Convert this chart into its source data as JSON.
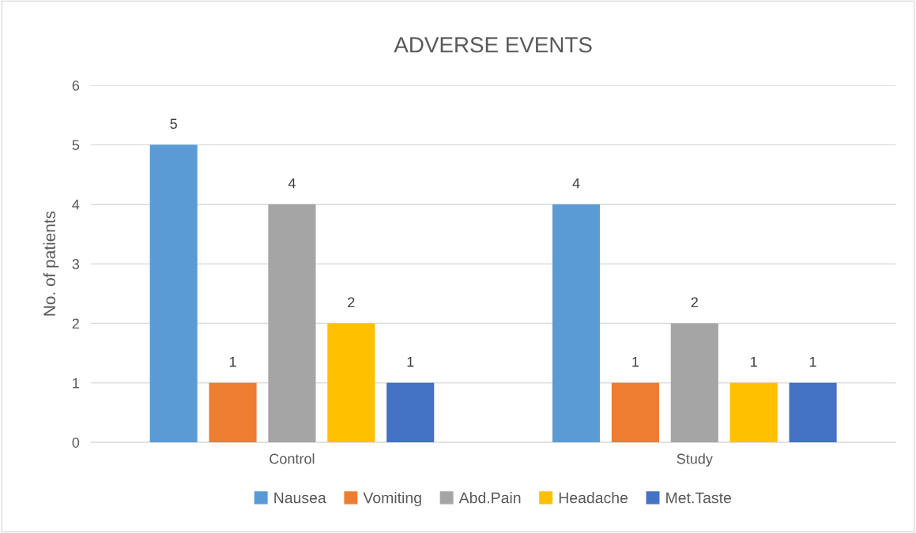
{
  "chart_data": {
    "type": "bar",
    "title": "ADVERSE EVENTS",
    "ylabel": "No. of patients",
    "categories": [
      "Control",
      "Study"
    ],
    "series": [
      {
        "name": "Nausea",
        "color": "#5b9bd5",
        "values": [
          5,
          4
        ]
      },
      {
        "name": "Vomiting",
        "color": "#ed7d31",
        "values": [
          1,
          1
        ]
      },
      {
        "name": "Abd.Pain",
        "color": "#a5a5a5",
        "values": [
          4,
          2
        ]
      },
      {
        "name": "Headache",
        "color": "#ffc000",
        "values": [
          2,
          1
        ]
      },
      {
        "name": "Met.Taste",
        "color": "#4472c4",
        "values": [
          1,
          1
        ]
      }
    ],
    "ylim": [
      0,
      6
    ],
    "yticks": [
      0,
      1,
      2,
      3,
      4,
      5,
      6
    ],
    "grid": "y",
    "legend": "bottom",
    "data_labels": true
  }
}
